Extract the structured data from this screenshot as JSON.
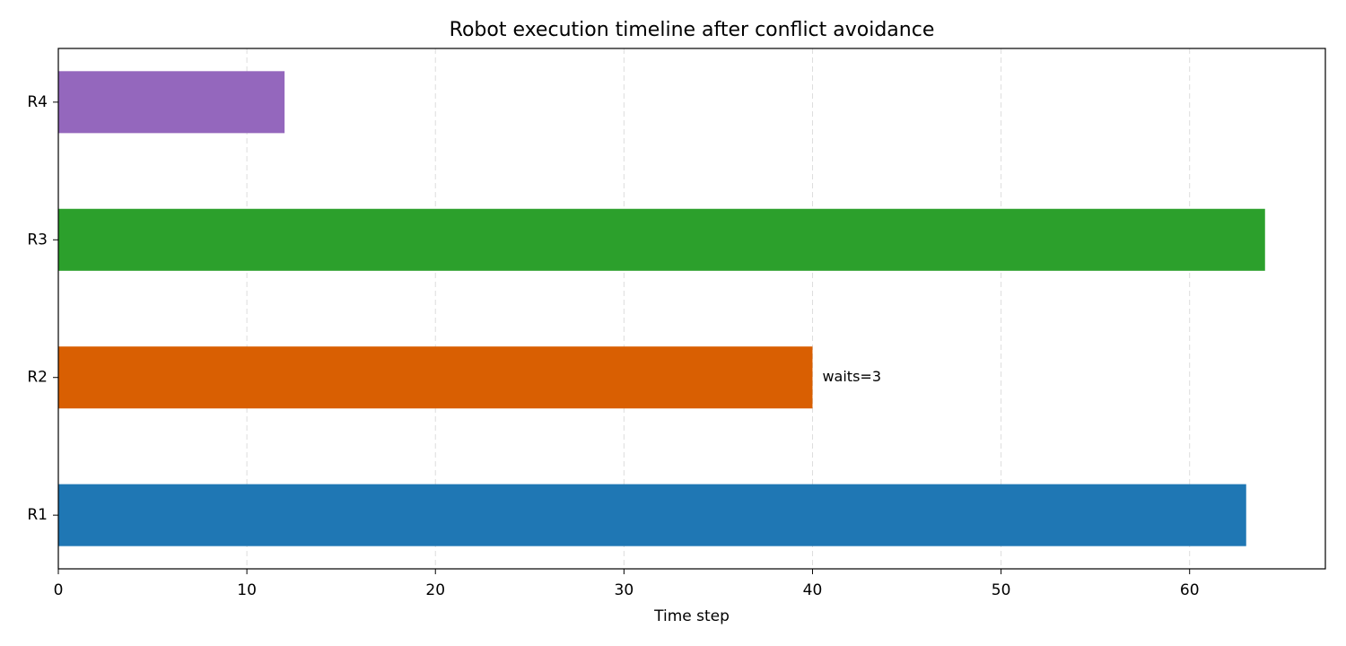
{
  "chart_data": {
    "type": "barh",
    "title": "Robot execution timeline after conflict avoidance",
    "x_label": "Time step",
    "categories": [
      "R1",
      "R2",
      "R3",
      "R4"
    ],
    "values": [
      63,
      40,
      64,
      12
    ],
    "colors": [
      "#1f77b4",
      "#d95f02",
      "#2ca02c",
      "#9467bd"
    ],
    "xlim": [
      0,
      67.2
    ],
    "xticks": [
      0,
      10,
      20,
      30,
      40,
      50,
      60
    ],
    "grid": true,
    "annotations": [
      {
        "category": "R2",
        "text": "waits=3"
      }
    ]
  }
}
